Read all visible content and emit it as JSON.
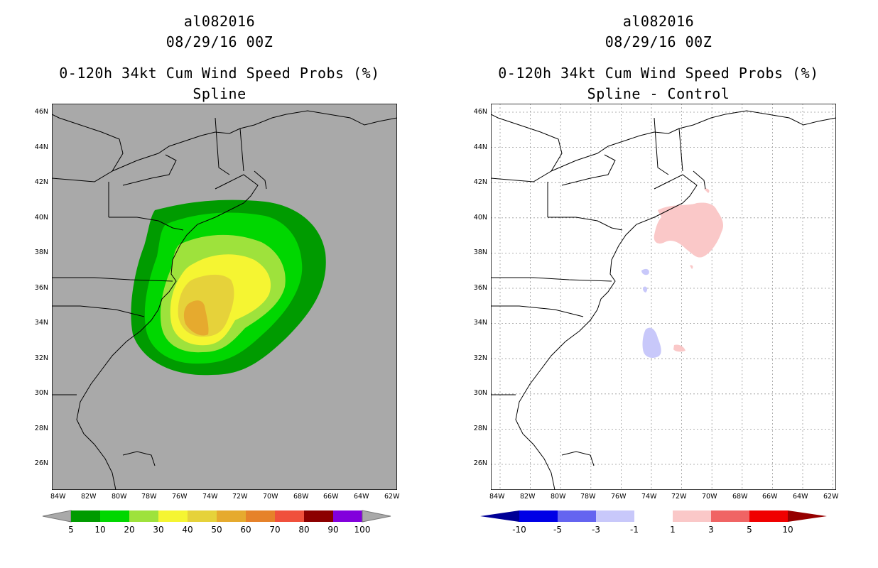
{
  "left_panel": {
    "storm_id": "al082016",
    "datetime": "08/29/16 00Z",
    "product": "0-120h 34kt Cum Wind Speed Probs (%)",
    "subtitle": "Spline",
    "map_background": "#a9a9a9",
    "colorbar": {
      "levels": [
        "5",
        "10",
        "20",
        "30",
        "40",
        "50",
        "60",
        "70",
        "80",
        "90",
        "100"
      ],
      "colors": [
        "#009b00",
        "#00d700",
        "#9ee23c",
        "#f5f532",
        "#e6d23a",
        "#e6aa2e",
        "#e6822a",
        "#f0503c",
        "#8c0000",
        "#8200dc"
      ],
      "end_color": "#a9a9a9"
    }
  },
  "right_panel": {
    "storm_id": "al082016",
    "datetime": "08/29/16 00Z",
    "product": "0-120h 34kt Cum Wind Speed Probs (%)",
    "subtitle": "Spline - Control",
    "map_background": "#ffffff",
    "colorbar": {
      "levels": [
        "-10",
        "-5",
        "-3",
        "-1",
        "1",
        "3",
        "5",
        "10"
      ],
      "colors": [
        "#0000e6",
        "#6464f0",
        "#c8c8fa",
        "#ffffff",
        "#fac8c8",
        "#f06464",
        "#f00000"
      ],
      "low_end_color": "#000096",
      "high_end_color": "#960000"
    }
  },
  "axes": {
    "lat_labels": [
      "46N",
      "44N",
      "42N",
      "40N",
      "38N",
      "36N",
      "34N",
      "32N",
      "30N",
      "28N",
      "26N"
    ],
    "lon_labels": [
      "84W",
      "82W",
      "80W",
      "78W",
      "76W",
      "74W",
      "72W",
      "70W",
      "68W",
      "66W",
      "64W",
      "62W"
    ]
  }
}
